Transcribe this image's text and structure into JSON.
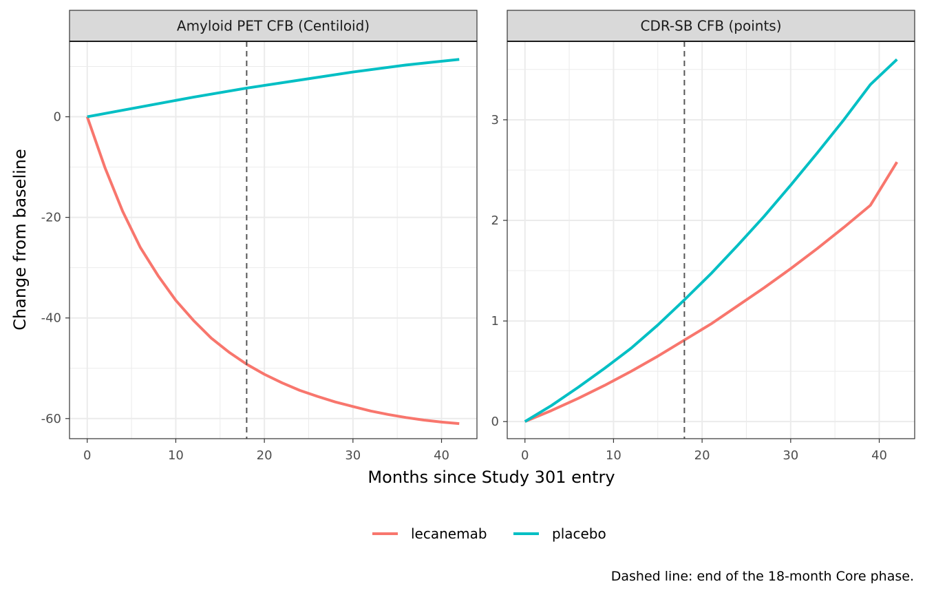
{
  "chart_data": {
    "type": "line",
    "xlabel": "Months since Study 301 entry",
    "ylabel": "Change from baseline",
    "caption": "Dashed line: end of the 18-month Core phase.",
    "legend_position": "bottom",
    "grid": true,
    "reference_line_x": 18,
    "colors": {
      "lecanemab": "#F8766D",
      "placebo": "#00BFC4"
    },
    "series_names": [
      "lecanemab",
      "placebo"
    ],
    "panels": [
      {
        "title": "Amyloid PET CFB (Centiloid)",
        "xlim": [
          -2,
          44
        ],
        "ylim": [
          -64,
          15
        ],
        "x_ticks": [
          0,
          10,
          20,
          30,
          40
        ],
        "y_ticks": [
          -60,
          -40,
          -20,
          0
        ],
        "series": [
          {
            "name": "lecanemab",
            "x": [
              0,
              2,
              4,
              6,
              8,
              10,
              12,
              14,
              16,
              18,
              20,
              22,
              24,
              26,
              28,
              30,
              32,
              34,
              36,
              38,
              40,
              42
            ],
            "y": [
              0,
              -10.1,
              -18.8,
              -26.0,
              -31.6,
              -36.5,
              -40.5,
              -44.0,
              -46.8,
              -49.2,
              -51.2,
              -52.9,
              -54.4,
              -55.6,
              -56.7,
              -57.6,
              -58.5,
              -59.2,
              -59.8,
              -60.3,
              -60.7,
              -61.0
            ]
          },
          {
            "name": "placebo",
            "x": [
              0,
              6,
              12,
              18,
              24,
              30,
              36,
              42
            ],
            "y": [
              0,
              1.95,
              3.9,
              5.7,
              7.3,
              8.9,
              10.3,
              11.4
            ]
          }
        ]
      },
      {
        "title": "CDR-SB CFB (points)",
        "xlim": [
          -2,
          44
        ],
        "ylim": [
          -0.17,
          3.78
        ],
        "x_ticks": [
          0,
          10,
          20,
          30,
          40
        ],
        "y_ticks": [
          0,
          1,
          2,
          3
        ],
        "series": [
          {
            "name": "lecanemab",
            "x": [
              0,
              3,
              6,
              9,
              12,
              15,
              18,
              21,
              24,
              27,
              30,
              33,
              36,
              39,
              42
            ],
            "y": [
              0,
              0.11,
              0.23,
              0.36,
              0.5,
              0.65,
              0.81,
              0.97,
              1.15,
              1.33,
              1.52,
              1.72,
              1.93,
              2.15,
              2.58
            ]
          },
          {
            "name": "placebo",
            "x": [
              0,
              3,
              6,
              9,
              12,
              15,
              18,
              21,
              24,
              27,
              30,
              33,
              36,
              39,
              42
            ],
            "y": [
              0,
              0.16,
              0.34,
              0.53,
              0.73,
              0.96,
              1.21,
              1.47,
              1.75,
              2.04,
              2.35,
              2.67,
              3.0,
              3.35,
              3.6
            ]
          }
        ]
      }
    ]
  }
}
